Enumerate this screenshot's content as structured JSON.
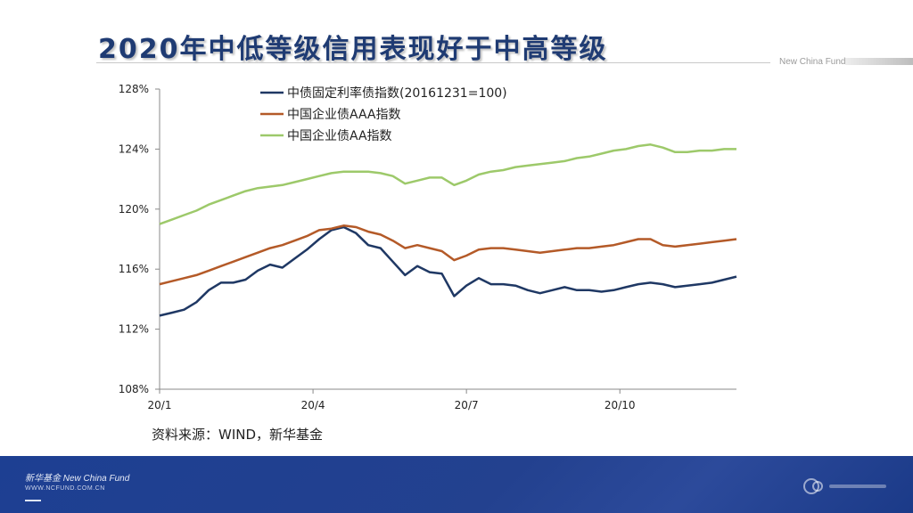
{
  "slide": {
    "title": "2020年中低等级信用表现好于中高等级",
    "brand_tag": "New China Fund",
    "source": "资料来源：WIND，新华基金"
  },
  "footer": {
    "brand": "新华基金 New China Fund",
    "url": "WWW.NCFUND.COM.CN"
  },
  "colors": {
    "title": "#1f3b73",
    "footer_bg": "#23418f"
  },
  "chart_data": {
    "type": "line",
    "title": "",
    "xlabel": "",
    "ylabel": "",
    "ylim": [
      108,
      128
    ],
    "yticks": [
      "108%",
      "112%",
      "116%",
      "120%",
      "124%",
      "128%"
    ],
    "ytick_values": [
      108,
      112,
      116,
      120,
      124,
      128
    ],
    "xticks": [
      "20/1",
      "20/4",
      "20/7",
      "20/10"
    ],
    "xlim": [
      0,
      47
    ],
    "xtick_positions": [
      0,
      12.5,
      25,
      37.5
    ],
    "grid": false,
    "legend_position": "top-left",
    "x": [
      0,
      1,
      2,
      3,
      4,
      5,
      6,
      7,
      8,
      9,
      10,
      11,
      12,
      13,
      14,
      15,
      16,
      17,
      18,
      19,
      20,
      21,
      22,
      23,
      24,
      25,
      26,
      27,
      28,
      29,
      30,
      31,
      32,
      33,
      34,
      35,
      36,
      37,
      38,
      39,
      40,
      41,
      42,
      43,
      44,
      45,
      46,
      47
    ],
    "series": [
      {
        "name": "中债固定利率债指数(20161231=100)",
        "color": "#1f3864",
        "values": [
          112.9,
          113.1,
          113.3,
          113.8,
          114.6,
          115.1,
          115.1,
          115.3,
          115.9,
          116.3,
          116.1,
          116.7,
          117.3,
          118.0,
          118.6,
          118.8,
          118.4,
          117.6,
          117.4,
          116.5,
          115.6,
          116.2,
          115.8,
          115.7,
          114.2,
          114.9,
          115.4,
          115.0,
          115.0,
          114.9,
          114.6,
          114.4,
          114.6,
          114.8,
          114.6,
          114.6,
          114.5,
          114.6,
          114.8,
          115.0,
          115.1,
          115.0,
          114.8,
          114.9,
          115.0,
          115.1,
          115.3,
          115.5
        ]
      },
      {
        "name": "中国企业债AAA指数",
        "color": "#b45a28",
        "values": [
          115.0,
          115.2,
          115.4,
          115.6,
          115.9,
          116.2,
          116.5,
          116.8,
          117.1,
          117.4,
          117.6,
          117.9,
          118.2,
          118.6,
          118.7,
          118.9,
          118.8,
          118.5,
          118.3,
          117.9,
          117.4,
          117.6,
          117.4,
          117.2,
          116.6,
          116.9,
          117.3,
          117.4,
          117.4,
          117.3,
          117.2,
          117.1,
          117.2,
          117.3,
          117.4,
          117.4,
          117.5,
          117.6,
          117.8,
          118.0,
          118.0,
          117.6,
          117.5,
          117.6,
          117.7,
          117.8,
          117.9,
          118.0
        ]
      },
      {
        "name": "中国企业债AA指数",
        "color": "#9dc96a",
        "values": [
          119.0,
          119.3,
          119.6,
          119.9,
          120.3,
          120.6,
          120.9,
          121.2,
          121.4,
          121.5,
          121.6,
          121.8,
          122.0,
          122.2,
          122.4,
          122.5,
          122.5,
          122.5,
          122.4,
          122.2,
          121.7,
          121.9,
          122.1,
          122.1,
          121.6,
          121.9,
          122.3,
          122.5,
          122.6,
          122.8,
          122.9,
          123.0,
          123.1,
          123.2,
          123.4,
          123.5,
          123.7,
          123.9,
          124.0,
          124.2,
          124.3,
          124.1,
          123.8,
          123.8,
          123.9,
          123.9,
          124.0,
          124.0
        ]
      }
    ]
  }
}
